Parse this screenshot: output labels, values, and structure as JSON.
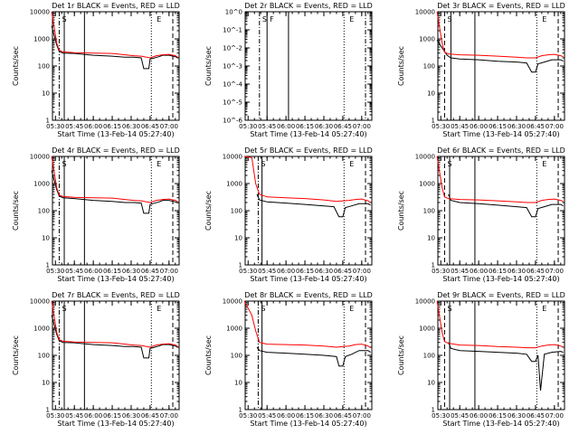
{
  "figure": {
    "xlabel": "Start Time (13-Feb-14 05:27:40)",
    "ylabel": "Counts/sec",
    "x_ticks": [
      "05:30",
      "05:45",
      "06:00",
      "06:15",
      "06:30",
      "06:45",
      "07:00"
    ],
    "y_ticks_log": [
      "1",
      "10",
      "100",
      "1000",
      "10000"
    ],
    "y_ticks_panel2": [
      "10^0",
      "10^-1",
      "10^-2",
      "10^-3",
      "10^-4",
      "10^-5",
      "10^-6"
    ],
    "colors": {
      "events": "#000000",
      "lld": "#ff0000",
      "axis": "#000000",
      "background": "#ffffff"
    }
  },
  "chart_data": [
    {
      "type": "line",
      "title": "Det 1r BLACK = Events, RED = LLD",
      "xlabel": "Start Time (13-Feb-14 05:27:40)",
      "ylabel": "Counts/sec",
      "x_range": [
        "05:27:40",
        "07:08:00"
      ],
      "y_scale": "log",
      "ylim": [
        1,
        10000
      ],
      "grid": false,
      "series": [
        {
          "color": "#000000",
          "x": [
            "05:27",
            "05:31",
            "05:33",
            "05:36",
            "05:45",
            "06:00",
            "06:15",
            "06:25",
            "06:32",
            "06:38",
            "06:40",
            "06:44",
            "06:45",
            "06:47",
            "06:52",
            "06:55",
            "07:00",
            "07:05",
            "07:07"
          ],
          "values": [
            3000,
            600,
            350,
            300,
            290,
            250,
            230,
            210,
            210,
            200,
            80,
            80,
            180,
            190,
            220,
            250,
            250,
            220,
            200
          ]
        },
        {
          "color": "#ff0000",
          "x": [
            "05:27",
            "05:31",
            "05:33",
            "05:36",
            "05:45",
            "06:00",
            "06:15",
            "06:25",
            "06:32",
            "06:38",
            "06:45",
            "06:50",
            "06:55",
            "07:00",
            "07:05",
            "07:07"
          ],
          "values": [
            10000,
            700,
            380,
            330,
            310,
            300,
            290,
            260,
            240,
            230,
            200,
            240,
            260,
            270,
            240,
            210
          ]
        }
      ],
      "marker_lines": [
        {
          "x": "05:33",
          "style": "dashdot"
        },
        {
          "x": "05:37",
          "style": "solid"
        },
        {
          "x": "05:53",
          "style": "solid"
        },
        {
          "x": "06:46",
          "style": "dotted"
        },
        {
          "x": "07:03",
          "style": "dashed"
        }
      ],
      "annotations": [
        "S",
        "E"
      ]
    },
    {
      "type": "line",
      "title": "Det 2r BLACK = Events, RED = LLD",
      "xlabel": "Start Time (13-Feb-14 05:27:40)",
      "ylabel": "Counts/sec",
      "x_range": [
        "05:27:40",
        "07:08:00"
      ],
      "y_scale": "log",
      "ylim": [
        1e-06,
        1
      ],
      "grid": false,
      "series": [],
      "marker_lines": [
        {
          "x": "05:39",
          "style": "dashdot"
        },
        {
          "x": "05:45",
          "style": "solid"
        },
        {
          "x": "06:02",
          "style": "solid"
        },
        {
          "x": "06:46",
          "style": "dotted"
        },
        {
          "x": "07:03",
          "style": "dashdot"
        }
      ],
      "annotations": [
        "S",
        "F",
        "E"
      ]
    },
    {
      "type": "line",
      "title": "Det 3r BLACK = Events, RED = LLD",
      "xlabel": "Start Time (13-Feb-14 05:27:40)",
      "ylabel": "Counts/sec",
      "x_range": [
        "05:27:40",
        "07:08:00"
      ],
      "y_scale": "log",
      "ylim": [
        1,
        10000
      ],
      "grid": false,
      "series": [
        {
          "color": "#000000",
          "x": [
            "05:27",
            "05:32",
            "05:35",
            "05:38",
            "05:45",
            "06:00",
            "06:15",
            "06:30",
            "06:38",
            "06:42",
            "06:45",
            "06:47",
            "06:52",
            "06:58",
            "07:05",
            "07:07"
          ],
          "values": [
            900,
            400,
            250,
            200,
            180,
            170,
            150,
            140,
            130,
            60,
            60,
            120,
            140,
            170,
            170,
            150
          ]
        },
        {
          "color": "#ff0000",
          "x": [
            "05:27",
            "05:31",
            "05:33",
            "05:36",
            "05:45",
            "06:00",
            "06:15",
            "06:30",
            "06:38",
            "06:45",
            "06:50",
            "06:55",
            "07:00",
            "07:05",
            "07:07"
          ],
          "values": [
            10000,
            700,
            320,
            280,
            260,
            250,
            230,
            210,
            200,
            200,
            240,
            260,
            270,
            240,
            220
          ]
        }
      ],
      "marker_lines": [
        {
          "x": "05:33",
          "style": "dashed"
        },
        {
          "x": "05:38",
          "style": "solid"
        },
        {
          "x": "05:57",
          "style": "solid"
        },
        {
          "x": "06:46",
          "style": "dotted"
        },
        {
          "x": "07:03",
          "style": "dashed"
        }
      ],
      "annotations": [
        "S",
        "E"
      ]
    },
    {
      "type": "line",
      "title": "Det 4r BLACK = Events, RED = LLD",
      "xlabel": "Start Time (13-Feb-14 05:27:40)",
      "ylabel": "Counts/sec",
      "x_range": [
        "05:27:40",
        "07:08:00"
      ],
      "y_scale": "log",
      "ylim": [
        1,
        10000
      ],
      "grid": false,
      "series": [
        {
          "color": "#000000",
          "x": [
            "05:27",
            "05:31",
            "05:33",
            "05:36",
            "05:45",
            "06:00",
            "06:15",
            "06:25",
            "06:32",
            "06:38",
            "06:40",
            "06:44",
            "06:45",
            "06:47",
            "06:52",
            "06:55",
            "07:00",
            "07:05",
            "07:07"
          ],
          "values": [
            3000,
            600,
            350,
            300,
            280,
            240,
            220,
            200,
            200,
            190,
            80,
            80,
            170,
            180,
            210,
            240,
            240,
            210,
            190
          ]
        },
        {
          "color": "#ff0000",
          "x": [
            "05:27",
            "05:31",
            "05:33",
            "05:36",
            "05:45",
            "06:00",
            "06:15",
            "06:25",
            "06:32",
            "06:38",
            "06:45",
            "06:50",
            "06:55",
            "07:00",
            "07:05",
            "07:07"
          ],
          "values": [
            10000,
            700,
            380,
            330,
            310,
            300,
            290,
            260,
            240,
            230,
            200,
            240,
            260,
            270,
            240,
            210
          ]
        }
      ],
      "marker_lines": [
        {
          "x": "05:33",
          "style": "dashdot"
        },
        {
          "x": "05:37",
          "style": "solid"
        },
        {
          "x": "05:53",
          "style": "solid"
        },
        {
          "x": "06:46",
          "style": "dotted"
        },
        {
          "x": "07:03",
          "style": "dashed"
        }
      ],
      "annotations": [
        "S",
        "E"
      ]
    },
    {
      "type": "line",
      "title": "Det 5r BLACK = Events, RED = LLD",
      "xlabel": "Start Time (13-Feb-14 05:27:40)",
      "ylabel": "Counts/sec",
      "x_range": [
        "05:27:40",
        "07:08:00"
      ],
      "y_scale": "log",
      "ylim": [
        1,
        10000
      ],
      "grid": false,
      "series": [
        {
          "color": "#000000",
          "x": [
            "05:37",
            "05:39",
            "05:45",
            "06:00",
            "06:15",
            "06:30",
            "06:38",
            "06:42",
            "06:45",
            "06:47",
            "06:52",
            "06:58",
            "07:05",
            "07:07"
          ],
          "values": [
            400,
            250,
            210,
            190,
            170,
            150,
            140,
            60,
            60,
            130,
            150,
            180,
            180,
            160
          ]
        },
        {
          "color": "#ff0000",
          "x": [
            "05:27",
            "05:33",
            "05:36",
            "05:39",
            "05:45",
            "06:00",
            "06:15",
            "06:30",
            "06:40",
            "06:50",
            "06:55",
            "07:00",
            "07:05",
            "07:07"
          ],
          "values": [
            10000,
            9000,
            1000,
            400,
            320,
            300,
            280,
            250,
            220,
            240,
            260,
            270,
            230,
            200
          ]
        }
      ],
      "marker_lines": [
        {
          "x": "05:38",
          "style": "dashdot"
        },
        {
          "x": "05:41",
          "style": "solid"
        },
        {
          "x": "06:46",
          "style": "dotted"
        },
        {
          "x": "07:03",
          "style": "dashed"
        }
      ],
      "annotations": [
        "S",
        "E"
      ]
    },
    {
      "type": "line",
      "title": "Det 6r BLACK = Events, RED = LLD",
      "xlabel": "Start Time (13-Feb-14 05:27:40)",
      "ylabel": "Counts/sec",
      "x_range": [
        "05:27:40",
        "07:08:00"
      ],
      "y_scale": "log",
      "ylim": [
        1,
        10000
      ],
      "grid": false,
      "series": [
        {
          "color": "#000000",
          "x": [
            "05:36",
            "05:38",
            "05:45",
            "06:00",
            "06:15",
            "06:30",
            "06:38",
            "06:42",
            "06:45",
            "06:47",
            "06:52",
            "06:58",
            "07:05",
            "07:07"
          ],
          "values": [
            400,
            240,
            200,
            180,
            160,
            140,
            130,
            60,
            60,
            120,
            140,
            170,
            170,
            150
          ]
        },
        {
          "color": "#ff0000",
          "x": [
            "05:27",
            "05:31",
            "05:33",
            "05:36",
            "05:45",
            "06:00",
            "06:15",
            "06:30",
            "06:38",
            "06:45",
            "06:50",
            "06:55",
            "07:00",
            "07:05",
            "07:07"
          ],
          "values": [
            10000,
            700,
            320,
            280,
            260,
            250,
            230,
            210,
            200,
            200,
            240,
            260,
            270,
            240,
            220
          ]
        }
      ],
      "marker_lines": [
        {
          "x": "05:33",
          "style": "dashed"
        },
        {
          "x": "05:37",
          "style": "solid"
        },
        {
          "x": "05:57",
          "style": "solid"
        },
        {
          "x": "06:46",
          "style": "dotted"
        },
        {
          "x": "07:03",
          "style": "dashed"
        }
      ],
      "annotations": [
        "S",
        "E"
      ]
    },
    {
      "type": "line",
      "title": "Det 7r BLACK = Events, RED = LLD",
      "xlabel": "Start Time (13-Feb-14 05:27:40)",
      "ylabel": "Counts/sec",
      "x_range": [
        "05:27:40",
        "07:08:00"
      ],
      "y_scale": "log",
      "ylim": [
        1,
        10000
      ],
      "grid": false,
      "series": [
        {
          "color": "#000000",
          "x": [
            "05:27",
            "05:31",
            "05:33",
            "05:36",
            "05:45",
            "06:00",
            "06:15",
            "06:25",
            "06:32",
            "06:38",
            "06:40",
            "06:44",
            "06:45",
            "06:47",
            "06:52",
            "06:55",
            "07:00",
            "07:05",
            "07:07"
          ],
          "values": [
            3000,
            600,
            350,
            300,
            290,
            250,
            230,
            210,
            210,
            200,
            80,
            80,
            180,
            190,
            220,
            250,
            250,
            220,
            200
          ]
        },
        {
          "color": "#ff0000",
          "x": [
            "05:27",
            "05:31",
            "05:33",
            "05:36",
            "05:45",
            "06:00",
            "06:15",
            "06:25",
            "06:32",
            "06:38",
            "06:45",
            "06:50",
            "06:55",
            "07:00",
            "07:05",
            "07:07"
          ],
          "values": [
            10000,
            700,
            380,
            330,
            310,
            300,
            290,
            260,
            240,
            230,
            200,
            240,
            260,
            270,
            240,
            210
          ]
        }
      ],
      "marker_lines": [
        {
          "x": "05:33",
          "style": "dashdot"
        },
        {
          "x": "05:37",
          "style": "solid"
        },
        {
          "x": "05:53",
          "style": "solid"
        },
        {
          "x": "06:46",
          "style": "dotted"
        },
        {
          "x": "07:03",
          "style": "dashed"
        }
      ],
      "annotations": [
        "S",
        "E"
      ]
    },
    {
      "type": "line",
      "title": "Det 8r BLACK = Events, RED = LLD",
      "xlabel": "Start Time (13-Feb-14 05:27:40)",
      "ylabel": "Counts/sec",
      "x_range": [
        "05:27:40",
        "07:08:00"
      ],
      "y_scale": "log",
      "ylim": [
        1,
        10000
      ],
      "grid": false,
      "series": [
        {
          "color": "#000000",
          "x": [
            "05:37",
            "05:39",
            "05:45",
            "06:00",
            "06:15",
            "06:30",
            "06:40",
            "06:42",
            "06:45",
            "06:47",
            "06:52",
            "06:58",
            "07:05",
            "07:07"
          ],
          "values": [
            200,
            150,
            130,
            120,
            110,
            100,
            90,
            40,
            40,
            90,
            110,
            150,
            150,
            130
          ]
        },
        {
          "color": "#ff0000",
          "x": [
            "05:27",
            "05:33",
            "05:36",
            "05:39",
            "05:45",
            "06:00",
            "06:15",
            "06:30",
            "06:40",
            "06:50",
            "06:55",
            "07:00",
            "07:05",
            "07:07"
          ],
          "values": [
            10000,
            3000,
            800,
            300,
            260,
            250,
            240,
            220,
            200,
            220,
            250,
            260,
            220,
            190
          ]
        }
      ],
      "marker_lines": [
        {
          "x": "05:38",
          "style": "dashdot"
        },
        {
          "x": "05:41",
          "style": "solid"
        },
        {
          "x": "06:46",
          "style": "dotted"
        },
        {
          "x": "07:03",
          "style": "dashed"
        }
      ],
      "annotations": [
        "S",
        "E"
      ]
    },
    {
      "type": "line",
      "title": "Det 9r BLACK = Events, RED = LLD",
      "xlabel": "Start Time (13-Feb-14 05:27:40)",
      "ylabel": "Counts/sec",
      "x_range": [
        "05:27:40",
        "07:08:00"
      ],
      "y_scale": "log",
      "ylim": [
        1,
        10000
      ],
      "grid": false,
      "series": [
        {
          "color": "#000000",
          "x": [
            "05:36",
            "05:38",
            "05:45",
            "06:00",
            "06:15",
            "06:30",
            "06:38",
            "06:42",
            "06:45",
            "06:47",
            "06:49",
            "06:52",
            "06:58",
            "07:05",
            "07:07"
          ],
          "values": [
            300,
            180,
            150,
            140,
            130,
            120,
            110,
            60,
            60,
            100,
            5,
            110,
            130,
            140,
            130
          ]
        },
        {
          "color": "#ff0000",
          "x": [
            "05:27",
            "05:31",
            "05:33",
            "05:36",
            "05:45",
            "06:00",
            "06:15",
            "06:30",
            "06:38",
            "06:45",
            "06:50",
            "06:55",
            "07:00",
            "07:05",
            "07:07"
          ],
          "values": [
            10000,
            700,
            320,
            280,
            240,
            230,
            210,
            200,
            190,
            190,
            220,
            240,
            250,
            220,
            200
          ]
        }
      ],
      "marker_lines": [
        {
          "x": "05:33",
          "style": "dashed"
        },
        {
          "x": "05:37",
          "style": "solid"
        },
        {
          "x": "05:57",
          "style": "solid"
        },
        {
          "x": "06:46",
          "style": "dotted"
        },
        {
          "x": "07:03",
          "style": "dashed"
        }
      ],
      "annotations": [
        "S",
        "E"
      ]
    }
  ]
}
